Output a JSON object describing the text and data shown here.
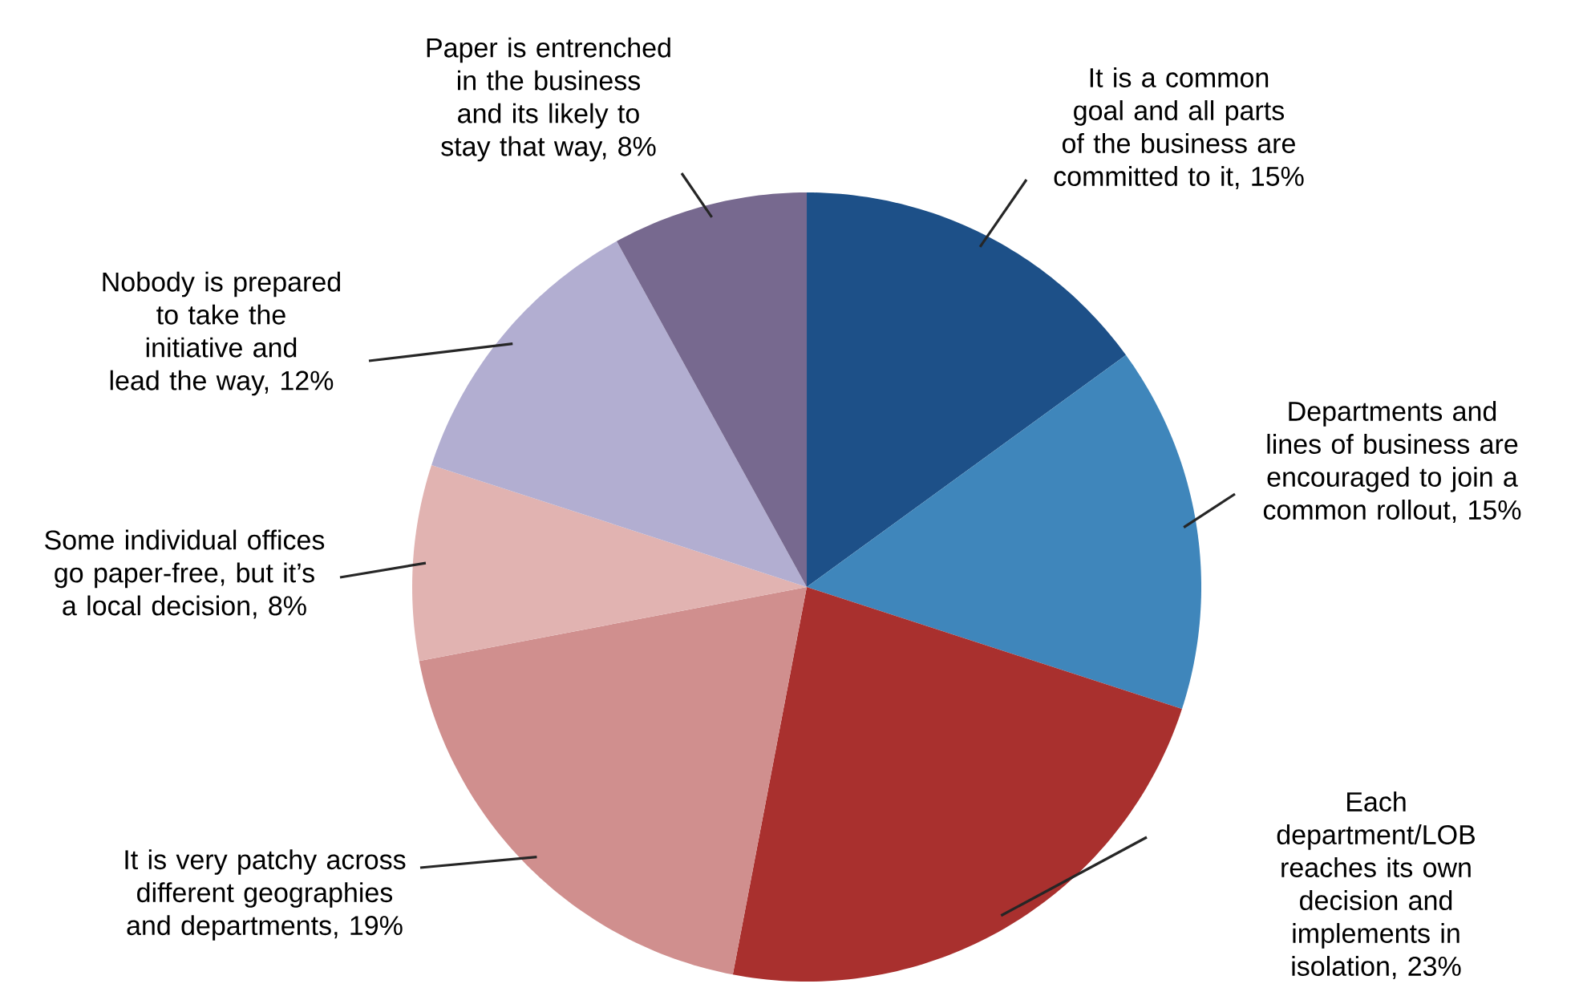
{
  "chart_data": {
    "type": "pie",
    "categories": [
      "It is a common goal and all parts of the business are committed to it, 15%",
      "Departments and lines of business are encouraged to join a common rollout, 15%",
      "Each department/LOB reaches its own decision and implements in isolation, 23%",
      "It is very patchy across different geographies and departments, 19%",
      "Some individual offices go paper-free, but it’s a local decision, 8%",
      "Nobody is prepared to take the initiative and lead the way, 12%",
      "Paper is entrenched in the business and its likely to stay that way, 8%"
    ],
    "values": [
      15,
      15,
      23,
      19,
      8,
      12,
      8
    ],
    "colors": [
      "#1d5088",
      "#3f86bb",
      "#a9302e",
      "#d08f8e",
      "#e1b3b1",
      "#b2aed1",
      "#77698f"
    ]
  }
}
